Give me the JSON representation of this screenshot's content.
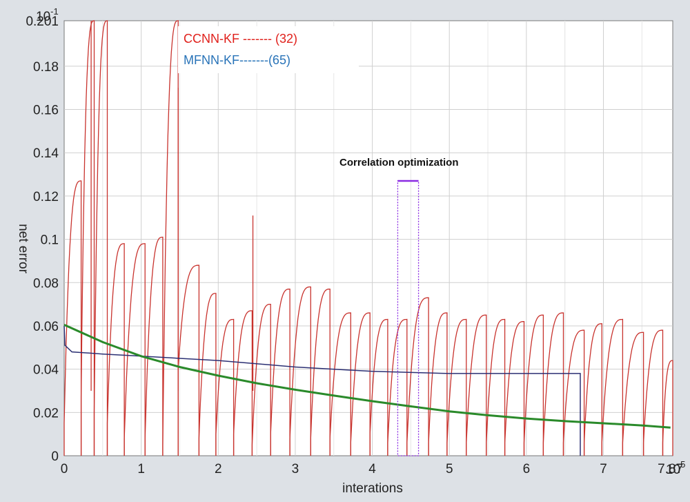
{
  "chart_data": {
    "type": "line",
    "xlabel": "interations",
    "ylabel": "net error",
    "x_multiplier_label": "10",
    "x_multiplier_exp": "5",
    "y_multiplier_label": "10",
    "y_multiplier_exp": "-1",
    "xlim": [
      0,
      7.9
    ],
    "ylim": [
      0,
      0.201
    ],
    "x_ticks": [
      0,
      1,
      2,
      3,
      4,
      5,
      6,
      7,
      7.87
    ],
    "x_tick_labels": [
      "0",
      "1",
      "2",
      "3",
      "4",
      "5",
      "6",
      "7",
      "7.87"
    ],
    "y_ticks": [
      0,
      0.02,
      0.04,
      0.06,
      0.08,
      0.1,
      0.12,
      0.14,
      0.16,
      0.18,
      0.201
    ],
    "y_tick_labels": [
      "0",
      "0.02",
      "0.04",
      "0.06",
      "0.08",
      "0.1",
      "0.12",
      "0.14",
      "0.16",
      "0.18",
      "0.201"
    ],
    "grid": true,
    "legend_position": "top-left",
    "legend": [
      {
        "label": "CCNN-KF ------- (32)",
        "color": "#e0201b"
      },
      {
        "label": "MFNN-KF-------(65)",
        "color": "#2873b8"
      }
    ],
    "annotation": {
      "text": "Correlation optimization",
      "x": 4.4,
      "y": 0.135
    },
    "colors": {
      "ccnn": "#c8322d",
      "mfnn": "#2b2f73",
      "trend": "#2a8a2a",
      "correlation": "#8a2be2",
      "grid": "#cfcfcf",
      "background": "#ffffff"
    },
    "series": [
      {
        "name": "CCNN-KF ------- (32)",
        "role": "ccnn",
        "segments": [
          {
            "x0": 0.0,
            "x1": 0.22,
            "y_start": 0.015,
            "y_end": 0.127
          },
          {
            "x0": 0.22,
            "x1": 0.39,
            "y_start": 0.027,
            "y_end": 0.201
          },
          {
            "x0": 0.39,
            "x1": 0.56,
            "y_start": 0.02,
            "y_end": 0.201
          },
          {
            "x0": 0.56,
            "x1": 0.78,
            "y_start": 0.015,
            "y_end": 0.098
          },
          {
            "x0": 0.78,
            "x1": 1.05,
            "y_start": 0.008,
            "y_end": 0.098
          },
          {
            "x0": 1.05,
            "x1": 1.28,
            "y_start": 0.008,
            "y_end": 0.101
          },
          {
            "x0": 1.28,
            "x1": 1.48,
            "y_start": 0.005,
            "y_end": 0.201
          },
          {
            "x0": 1.48,
            "x1": 1.75,
            "y_start": 0.04,
            "y_end": 0.088
          },
          {
            "x0": 1.75,
            "x1": 1.97,
            "y_start": 0.008,
            "y_end": 0.075
          },
          {
            "x0": 1.97,
            "x1": 2.2,
            "y_start": 0.01,
            "y_end": 0.063
          },
          {
            "x0": 2.2,
            "x1": 2.44,
            "y_start": 0.01,
            "y_end": 0.067
          },
          {
            "x0": 2.44,
            "x1": 2.68,
            "y_start": 0.005,
            "y_end": 0.07
          },
          {
            "x0": 2.68,
            "x1": 2.93,
            "y_start": 0.01,
            "y_end": 0.077
          },
          {
            "x0": 2.93,
            "x1": 3.2,
            "y_start": 0.008,
            "y_end": 0.078
          },
          {
            "x0": 3.2,
            "x1": 3.45,
            "y_start": 0.008,
            "y_end": 0.077
          },
          {
            "x0": 3.45,
            "x1": 3.72,
            "y_start": 0.008,
            "y_end": 0.066
          },
          {
            "x0": 3.72,
            "x1": 3.97,
            "y_start": 0.006,
            "y_end": 0.066
          },
          {
            "x0": 3.97,
            "x1": 4.2,
            "y_start": 0.01,
            "y_end": 0.063
          },
          {
            "x0": 4.2,
            "x1": 4.45,
            "y_start": 0.006,
            "y_end": 0.063
          },
          {
            "x0": 4.45,
            "x1": 4.73,
            "y_start": 0.006,
            "y_end": 0.073
          },
          {
            "x0": 4.73,
            "x1": 4.97,
            "y_start": 0.006,
            "y_end": 0.066
          },
          {
            "x0": 4.97,
            "x1": 5.22,
            "y_start": 0.006,
            "y_end": 0.063
          },
          {
            "x0": 5.22,
            "x1": 5.48,
            "y_start": 0.006,
            "y_end": 0.065
          },
          {
            "x0": 5.48,
            "x1": 5.72,
            "y_start": 0.006,
            "y_end": 0.063
          },
          {
            "x0": 5.72,
            "x1": 5.97,
            "y_start": 0.006,
            "y_end": 0.062
          },
          {
            "x0": 5.97,
            "x1": 6.22,
            "y_start": 0.006,
            "y_end": 0.065
          },
          {
            "x0": 6.22,
            "x1": 6.48,
            "y_start": 0.006,
            "y_end": 0.066
          },
          {
            "x0": 6.48,
            "x1": 6.75,
            "y_start": 0.006,
            "y_end": 0.058
          },
          {
            "x0": 6.75,
            "x1": 6.98,
            "y_start": 0.006,
            "y_end": 0.061
          },
          {
            "x0": 6.98,
            "x1": 7.25,
            "y_start": 0.006,
            "y_end": 0.063
          },
          {
            "x0": 7.25,
            "x1": 7.52,
            "y_start": 0.006,
            "y_end": 0.057
          },
          {
            "x0": 7.52,
            "x1": 7.77,
            "y_start": 0.006,
            "y_end": 0.058
          },
          {
            "x0": 7.77,
            "x1": 7.9,
            "y_start": 0.006,
            "y_end": 0.044
          }
        ],
        "extra_spikes": [
          {
            "x": 0.35,
            "y": 0.201
          },
          {
            "x": 1.48,
            "y": 0.17
          },
          {
            "x": 2.45,
            "y": 0.111
          }
        ]
      },
      {
        "name": "MFNN-KF-------(65)",
        "role": "mfnn",
        "x": [
          0.0,
          0.01,
          0.1,
          0.5,
          1.0,
          2.0,
          3.0,
          4.0,
          5.0,
          6.0,
          6.7,
          6.7
        ],
        "y": [
          0.06,
          0.051,
          0.048,
          0.047,
          0.046,
          0.044,
          0.041,
          0.039,
          0.038,
          0.038,
          0.038,
          0.0
        ]
      },
      {
        "name": "",
        "role": "trend",
        "x": [
          0.0,
          0.5,
          1.0,
          1.5,
          2.0,
          2.5,
          3.0,
          3.5,
          4.0,
          4.5,
          5.0,
          5.5,
          6.0,
          6.5,
          7.0,
          7.5,
          7.87
        ],
        "y": [
          0.0605,
          0.0525,
          0.046,
          0.041,
          0.037,
          0.0335,
          0.0305,
          0.0278,
          0.0252,
          0.0228,
          0.0205,
          0.0187,
          0.0172,
          0.016,
          0.015,
          0.014,
          0.013
        ]
      }
    ],
    "correlation_marker": {
      "x0": 4.33,
      "x1": 4.6,
      "y_top": 0.127
    }
  }
}
